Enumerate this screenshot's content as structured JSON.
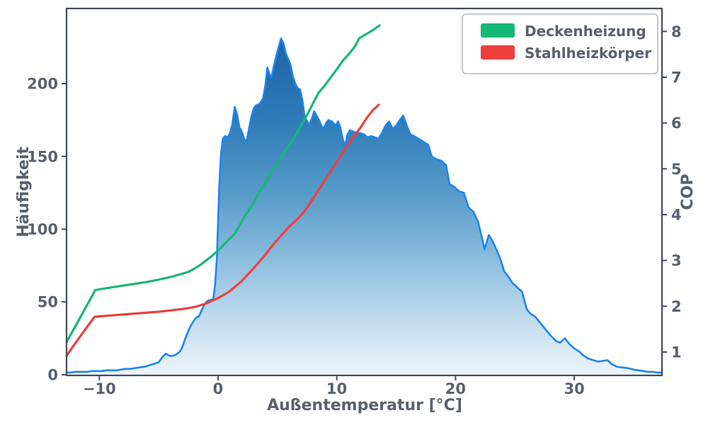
{
  "chart_data": {
    "type": "area+line",
    "title": "",
    "xlabel": "Außentemperatur [°C]",
    "ylabel_left": "Häufigkeit",
    "ylabel_right": "COP",
    "xlim": [
      -12.76,
      37.39
    ],
    "ylim_left": [
      -0.5,
      251.6
    ],
    "ylim_right": [
      0.49,
      8.5
    ],
    "grid": "off",
    "legend_position": "upper right",
    "frame_color": "#454c59",
    "text_color": "#59616e",
    "x_ticks": [
      {
        "value": -10,
        "label": "−10"
      },
      {
        "value": 0,
        "label": "0"
      },
      {
        "value": 10,
        "label": "10"
      },
      {
        "value": 20,
        "label": "20"
      },
      {
        "value": 30,
        "label": "30"
      }
    ],
    "y_left_ticks": [
      {
        "value": 0,
        "label": "0"
      },
      {
        "value": 50,
        "label": "50"
      },
      {
        "value": 100,
        "label": "100"
      },
      {
        "value": 150,
        "label": "150"
      },
      {
        "value": 200,
        "label": "200"
      }
    ],
    "y_right_ticks": [
      {
        "value": 1,
        "label": "1"
      },
      {
        "value": 2,
        "label": "2"
      },
      {
        "value": 3,
        "label": "3"
      },
      {
        "value": 4,
        "label": "4"
      },
      {
        "value": 5,
        "label": "5"
      },
      {
        "value": 6,
        "label": "6"
      },
      {
        "value": 7,
        "label": "7"
      },
      {
        "value": 8,
        "label": "8"
      }
    ],
    "histogram": {
      "name": "Häufigkeit",
      "axis": "left",
      "line_color": "#1e85ee",
      "gradient_stops": [
        {
          "offset": 0.0,
          "color": "#175a9e"
        },
        {
          "offset": 0.3,
          "color": "#2e7ab7"
        },
        {
          "offset": 0.5,
          "color": "#569ac9"
        },
        {
          "offset": 0.68,
          "color": "#8abcdd"
        },
        {
          "offset": 0.85,
          "color": "#c2dcef"
        },
        {
          "offset": 1.0,
          "color": "#edf4fb"
        }
      ],
      "points": [
        [
          -12.76,
          1.5
        ],
        [
          -12.4,
          1.5
        ],
        [
          -12,
          2
        ],
        [
          -11.5,
          2
        ],
        [
          -11,
          2
        ],
        [
          -10.6,
          2.5
        ],
        [
          -10.2,
          2.5
        ],
        [
          -9.8,
          2.5
        ],
        [
          -9.4,
          3
        ],
        [
          -9,
          3
        ],
        [
          -8.6,
          3
        ],
        [
          -8.2,
          3.5
        ],
        [
          -7.8,
          4
        ],
        [
          -7.4,
          4
        ],
        [
          -7,
          4.5
        ],
        [
          -6.6,
          5
        ],
        [
          -6.2,
          5.5
        ],
        [
          -5.8,
          6.5
        ],
        [
          -5.4,
          7.5
        ],
        [
          -5,
          8.5
        ],
        [
          -4.7,
          12
        ],
        [
          -4.4,
          14.5
        ],
        [
          -4.1,
          13
        ],
        [
          -3.8,
          13
        ],
        [
          -3.5,
          14
        ],
        [
          -3.2,
          16
        ],
        [
          -3,
          19
        ],
        [
          -2.8,
          24
        ],
        [
          -2.6,
          28
        ],
        [
          -2.4,
          32
        ],
        [
          -2.2,
          35
        ],
        [
          -2,
          37.5
        ],
        [
          -1.8,
          39.5
        ],
        [
          -1.6,
          40
        ],
        [
          -1.4,
          44
        ],
        [
          -1.2,
          47.5
        ],
        [
          -1,
          50
        ],
        [
          -0.8,
          51
        ],
        [
          -0.6,
          51.5
        ],
        [
          -0.4,
          52
        ],
        [
          -0.25,
          62
        ],
        [
          -0.1,
          80
        ],
        [
          0,
          105
        ],
        [
          0.1,
          130
        ],
        [
          0.25,
          152
        ],
        [
          0.4,
          162
        ],
        [
          0.6,
          164
        ],
        [
          0.8,
          163
        ],
        [
          1,
          166
        ],
        [
          1.2,
          172
        ],
        [
          1.4,
          184
        ],
        [
          1.6,
          179
        ],
        [
          1.8,
          170
        ],
        [
          2,
          167
        ],
        [
          2.2,
          162
        ],
        [
          2.4,
          160
        ],
        [
          2.6,
          169
        ],
        [
          2.8,
          177
        ],
        [
          3,
          183
        ],
        [
          3.2,
          185
        ],
        [
          3.5,
          186
        ],
        [
          3.8,
          190
        ],
        [
          4,
          200
        ],
        [
          4.15,
          211
        ],
        [
          4.3,
          207
        ],
        [
          4.5,
          204
        ],
        [
          4.7,
          212
        ],
        [
          4.9,
          219
        ],
        [
          5.1,
          225
        ],
        [
          5.3,
          231
        ],
        [
          5.5,
          228
        ],
        [
          5.7,
          221
        ],
        [
          5.9,
          217
        ],
        [
          6.1,
          213
        ],
        [
          6.3,
          205
        ],
        [
          6.5,
          200
        ],
        [
          6.7,
          197
        ],
        [
          6.9,
          196
        ],
        [
          7.1,
          189
        ],
        [
          7.3,
          177
        ],
        [
          7.5,
          174
        ],
        [
          7.7,
          172
        ],
        [
          7.9,
          176
        ],
        [
          8.1,
          181
        ],
        [
          8.3,
          178
        ],
        [
          8.5,
          175
        ],
        [
          8.7,
          171
        ],
        [
          8.9,
          169
        ],
        [
          9.1,
          173
        ],
        [
          9.3,
          175
        ],
        [
          9.6,
          174
        ],
        [
          9.9,
          171
        ],
        [
          10.1,
          174
        ],
        [
          10.3,
          170
        ],
        [
          10.5,
          162
        ],
        [
          10.7,
          157
        ],
        [
          10.9,
          165
        ],
        [
          11.1,
          168
        ],
        [
          11.4,
          167
        ],
        [
          11.7,
          166
        ],
        [
          12,
          166
        ],
        [
          12.3,
          165
        ],
        [
          12.6,
          163
        ],
        [
          12.9,
          164
        ],
        [
          13.2,
          163
        ],
        [
          13.5,
          162
        ],
        [
          13.8,
          166
        ],
        [
          14.1,
          171
        ],
        [
          14.4,
          174
        ],
        [
          14.7,
          169
        ],
        [
          15,
          171
        ],
        [
          15.3,
          175
        ],
        [
          15.6,
          178
        ],
        [
          15.9,
          171
        ],
        [
          16.2,
          165
        ],
        [
          16.5,
          164
        ],
        [
          16.9,
          162
        ],
        [
          17.3,
          160
        ],
        [
          17.7,
          158
        ],
        [
          18,
          150
        ],
        [
          18.4,
          148
        ],
        [
          18.8,
          147
        ],
        [
          19.2,
          144
        ],
        [
          19.5,
          131
        ],
        [
          19.9,
          129
        ],
        [
          20.3,
          126
        ],
        [
          20.7,
          125
        ],
        [
          21.1,
          115
        ],
        [
          21.5,
          112
        ],
        [
          21.9,
          105
        ],
        [
          22.2,
          95
        ],
        [
          22.45,
          86
        ],
        [
          22.8,
          96
        ],
        [
          23.1,
          92
        ],
        [
          23.5,
          85
        ],
        [
          23.8,
          79
        ],
        [
          24.1,
          71
        ],
        [
          24.4,
          68
        ],
        [
          24.8,
          63
        ],
        [
          25.2,
          60
        ],
        [
          25.6,
          57
        ],
        [
          26,
          45
        ],
        [
          26.3,
          42
        ],
        [
          26.7,
          40
        ],
        [
          27.1,
          36
        ],
        [
          27.5,
          32
        ],
        [
          28,
          27
        ],
        [
          28.5,
          23
        ],
        [
          28.8,
          22
        ],
        [
          29.2,
          25
        ],
        [
          29.6,
          21
        ],
        [
          30,
          18
        ],
        [
          30.4,
          16
        ],
        [
          30.8,
          13
        ],
        [
          31.2,
          11
        ],
        [
          31.6,
          10
        ],
        [
          32,
          9
        ],
        [
          32.4,
          9.5
        ],
        [
          32.8,
          10
        ],
        [
          33.2,
          7
        ],
        [
          33.6,
          5.5
        ],
        [
          34,
          5
        ],
        [
          34.5,
          4.5
        ],
        [
          35,
          3.5
        ],
        [
          35.4,
          3
        ],
        [
          35.8,
          2.5
        ],
        [
          36.2,
          2
        ],
        [
          36.6,
          2
        ],
        [
          37,
          1.5
        ],
        [
          37.35,
          1.5
        ]
      ]
    },
    "series": [
      {
        "name": "Deckenheizung",
        "axis": "right",
        "color": "#16b877",
        "points": [
          [
            -12.76,
            1.22
          ],
          [
            -12,
            1.57
          ],
          [
            -11,
            2.04
          ],
          [
            -10.35,
            2.35
          ],
          [
            -10,
            2.37
          ],
          [
            -9,
            2.41
          ],
          [
            -8,
            2.45
          ],
          [
            -7,
            2.49
          ],
          [
            -6,
            2.53
          ],
          [
            -5,
            2.58
          ],
          [
            -4,
            2.64
          ],
          [
            -3,
            2.71
          ],
          [
            -2.5,
            2.75
          ],
          [
            -2,
            2.82
          ],
          [
            -1.5,
            2.9
          ],
          [
            -1,
            3
          ],
          [
            -0.5,
            3.1
          ],
          [
            0,
            3.22
          ],
          [
            0.5,
            3.35
          ],
          [
            1,
            3.48
          ],
          [
            1.4,
            3.58
          ],
          [
            1.8,
            3.76
          ],
          [
            2.2,
            3.95
          ],
          [
            2.6,
            4.1
          ],
          [
            3,
            4.27
          ],
          [
            3.5,
            4.5
          ],
          [
            4,
            4.7
          ],
          [
            4.5,
            4.92
          ],
          [
            5,
            5.12
          ],
          [
            5.5,
            5.33
          ],
          [
            6,
            5.52
          ],
          [
            6.5,
            5.72
          ],
          [
            7,
            5.95
          ],
          [
            7.5,
            6.18
          ],
          [
            8,
            6.43
          ],
          [
            8.5,
            6.67
          ],
          [
            9,
            6.82
          ],
          [
            9.5,
            7
          ],
          [
            10,
            7.17
          ],
          [
            10.5,
            7.36
          ],
          [
            11,
            7.5
          ],
          [
            11.5,
            7.66
          ],
          [
            11.9,
            7.85
          ],
          [
            12.4,
            7.93
          ],
          [
            13,
            8.02
          ],
          [
            13.6,
            8.13
          ]
        ]
      },
      {
        "name": "Stahlheizkörper",
        "axis": "right",
        "color": "#ee3f3f",
        "points": [
          [
            -12.76,
            0.92
          ],
          [
            -12,
            1.2
          ],
          [
            -11,
            1.56
          ],
          [
            -10.4,
            1.77
          ],
          [
            -10,
            1.78
          ],
          [
            -9,
            1.8
          ],
          [
            -8,
            1.82
          ],
          [
            -7,
            1.84
          ],
          [
            -6,
            1.86
          ],
          [
            -5,
            1.88
          ],
          [
            -4,
            1.91
          ],
          [
            -3,
            1.94
          ],
          [
            -2.5,
            1.96
          ],
          [
            -2,
            1.98
          ],
          [
            -1.5,
            2.02
          ],
          [
            -1,
            2.06
          ],
          [
            -0.5,
            2.12
          ],
          [
            0,
            2.18
          ],
          [
            0.5,
            2.25
          ],
          [
            1,
            2.33
          ],
          [
            1.5,
            2.44
          ],
          [
            2,
            2.55
          ],
          [
            2.5,
            2.69
          ],
          [
            3,
            2.83
          ],
          [
            3.5,
            2.98
          ],
          [
            4,
            3.13
          ],
          [
            4.5,
            3.3
          ],
          [
            5,
            3.45
          ],
          [
            5.5,
            3.6
          ],
          [
            6,
            3.74
          ],
          [
            6.5,
            3.86
          ],
          [
            7,
            3.99
          ],
          [
            7.5,
            4.15
          ],
          [
            8,
            4.35
          ],
          [
            8.5,
            4.55
          ],
          [
            9,
            4.75
          ],
          [
            9.5,
            4.95
          ],
          [
            10,
            5.15
          ],
          [
            10.5,
            5.35
          ],
          [
            11,
            5.55
          ],
          [
            11.5,
            5.73
          ],
          [
            12,
            5.9
          ],
          [
            12.5,
            6.1
          ],
          [
            13,
            6.27
          ],
          [
            13.55,
            6.4
          ]
        ]
      }
    ]
  }
}
